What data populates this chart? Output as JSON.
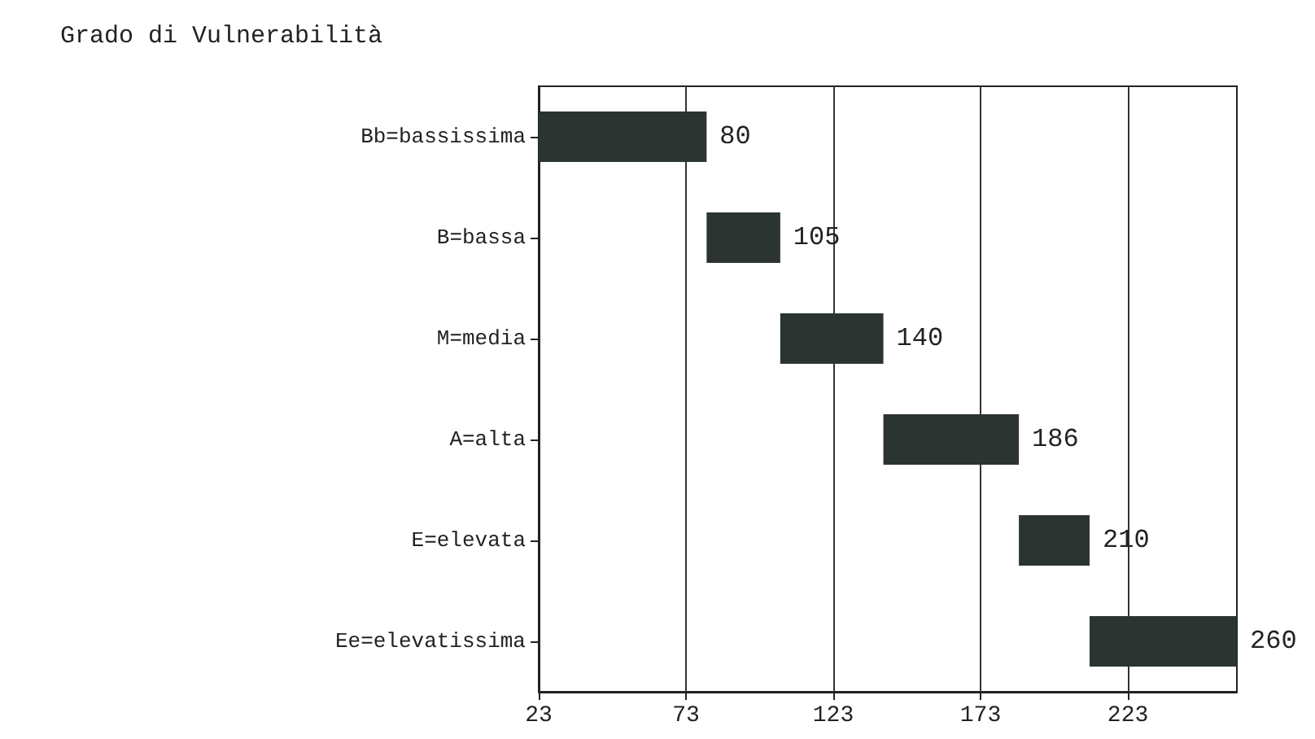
{
  "chart_data": {
    "type": "bar",
    "orientation": "horizontal",
    "title": "Grado di Vulnerabilità",
    "categories": [
      "Bb=bassissima",
      "B=bassa",
      "M=media",
      "A=alta",
      "E=elevata",
      "Ee=elevatissima"
    ],
    "base": [
      23,
      80,
      105,
      140,
      186,
      210
    ],
    "values": [
      57,
      25,
      35,
      46,
      24,
      50
    ],
    "value_labels": [
      "80",
      "105",
      "140",
      "186",
      "210",
      "260"
    ],
    "color": "#2b3430",
    "xlim": [
      23,
      260
    ],
    "xticks": [
      23,
      73,
      123,
      173,
      223
    ],
    "grid": "x"
  }
}
